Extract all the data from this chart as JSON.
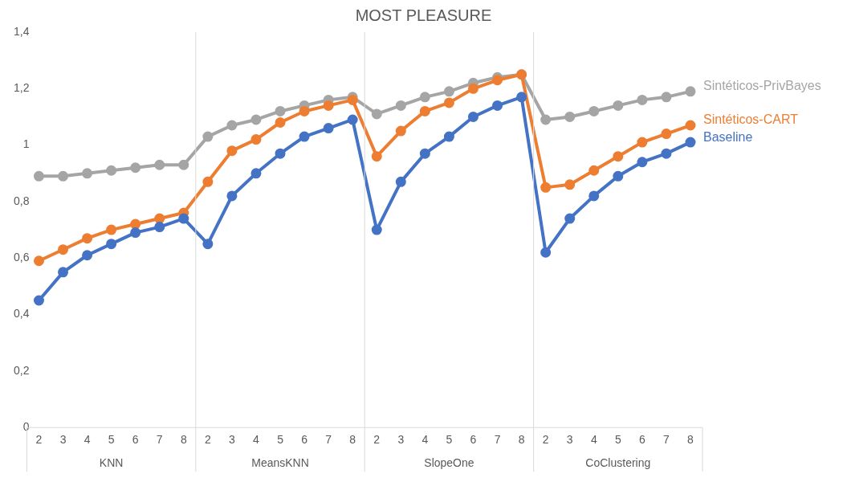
{
  "chart_data": {
    "type": "line",
    "title": "MOST PLEASURE",
    "categories": [
      "2",
      "3",
      "4",
      "5",
      "6",
      "7",
      "8",
      "2",
      "3",
      "4",
      "5",
      "6",
      "7",
      "8",
      "2",
      "3",
      "4",
      "5",
      "6",
      "7",
      "8",
      "2",
      "3",
      "4",
      "5",
      "6",
      "7",
      "8"
    ],
    "annotations": [
      "KNN",
      "MeansKNN",
      "SlopeOne",
      "CoClustering"
    ],
    "series": [
      {
        "name": "Baseline",
        "color": "#4472c4",
        "values": [
          0.45,
          0.55,
          0.61,
          0.65,
          0.69,
          0.71,
          0.74,
          0.65,
          0.82,
          0.9,
          0.97,
          1.03,
          1.06,
          1.09,
          0.7,
          0.87,
          0.97,
          1.03,
          1.1,
          1.14,
          1.17,
          0.62,
          0.74,
          0.82,
          0.89,
          0.94,
          0.97,
          1.01
        ]
      },
      {
        "name": "Sintéticos-CART",
        "color": "#ed7d31",
        "values": [
          0.59,
          0.63,
          0.67,
          0.7,
          0.72,
          0.74,
          0.76,
          0.87,
          0.98,
          1.02,
          1.08,
          1.12,
          1.14,
          1.16,
          0.96,
          1.05,
          1.12,
          1.15,
          1.2,
          1.23,
          1.25,
          0.85,
          0.86,
          0.91,
          0.96,
          1.01,
          1.04,
          1.07
        ]
      },
      {
        "name": "Sintéticos-PrivBayes",
        "color": "#a5a5a5",
        "values": [
          0.89,
          0.89,
          0.9,
          0.91,
          0.92,
          0.93,
          0.93,
          1.03,
          1.07,
          1.09,
          1.12,
          1.14,
          1.16,
          1.17,
          1.11,
          1.14,
          1.17,
          1.19,
          1.22,
          1.24,
          1.25,
          1.09,
          1.1,
          1.12,
          1.14,
          1.16,
          1.17,
          1.19
        ]
      }
    ],
    "ylim": [
      0,
      1.4
    ],
    "yticks": [
      0,
      {
        "value": 0.2,
        "label": "0,2"
      },
      {
        "value": 0.4,
        "label": "0,4"
      },
      {
        "value": 0.6,
        "label": "0,6"
      },
      {
        "value": 0.8,
        "label": "0,8"
      },
      1,
      {
        "value": 1.2,
        "label": "1,2"
      },
      {
        "value": 1.4,
        "label": "1,4"
      }
    ],
    "marker": "circle",
    "line_style": "solid"
  }
}
